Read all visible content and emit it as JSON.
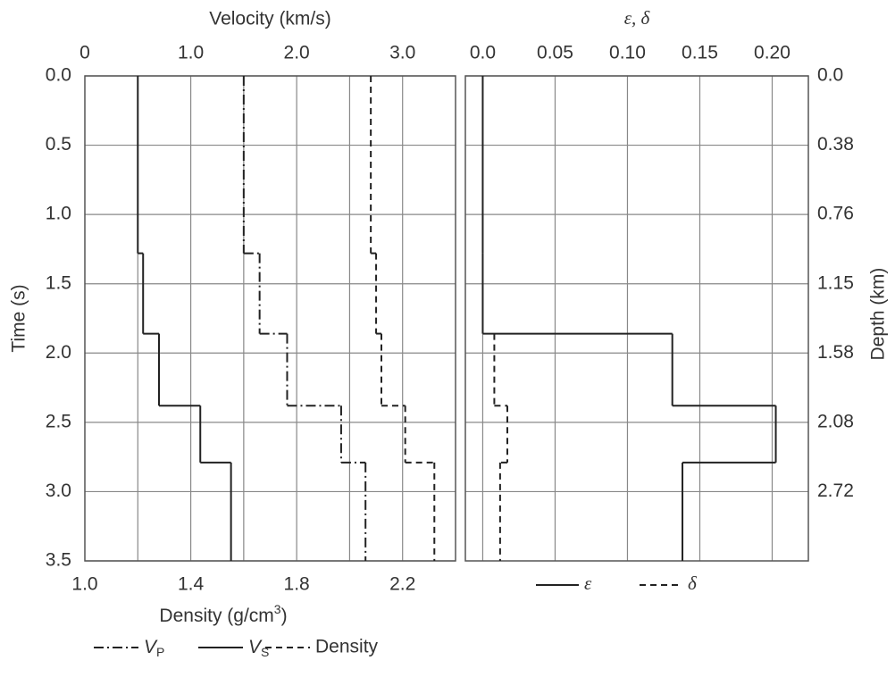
{
  "chart_data": [
    {
      "type": "step",
      "x_label": "Velocity (km/s)",
      "x2_label": "Density (g/cm3)",
      "y_label": "Time (s)",
      "y_breaks": [
        0,
        1.28,
        1.86,
        2.38,
        2.79,
        3.5
      ],
      "xlim": [
        0,
        3.5
      ],
      "xticks": [
        0,
        {
          "value": 1,
          "label": "1.0"
        },
        {
          "value": 2,
          "label": "2.0"
        },
        {
          "value": 3,
          "label": "3.0"
        }
      ],
      "xgrid": [
        0.5,
        1,
        1.5,
        2,
        2.5,
        3
      ],
      "x2lim": [
        1,
        2.4
      ],
      "x2ticks": [
        {
          "value": 1,
          "label": "1.0"
        },
        1.4,
        1.8,
        2.2
      ],
      "ylim": [
        0,
        3.5
      ],
      "y_inverted": true,
      "yticks": [
        {
          "value": 0,
          "label": "0.0"
        },
        0.5,
        {
          "value": 1,
          "label": "1.0"
        },
        1.5,
        {
          "value": 2,
          "label": "2.0"
        },
        2.5,
        {
          "value": 3,
          "label": "3.0"
        },
        3.5
      ],
      "series": [
        {
          "name": "VP",
          "style": "dashdot",
          "color": "#222",
          "values": [
            1.5,
            1.65,
            1.91,
            2.42,
            2.65
          ]
        },
        {
          "name": "VS",
          "style": "solid",
          "color": "#222",
          "values": [
            0.5,
            0.55,
            0.7,
            1.09,
            1.38
          ]
        },
        {
          "name": "Density",
          "style": "dashed",
          "color": "#222",
          "axis": "x2",
          "values": [
            2.08,
            2.1,
            2.12,
            2.21,
            2.32
          ]
        }
      ]
    },
    {
      "type": "step",
      "x_label": "ε, δ",
      "y2_label": "Depth (km)",
      "y_breaks": [
        0,
        1.28,
        1.86,
        2.38,
        2.79,
        3.5
      ],
      "xlim": [
        -0.012,
        0.225
      ],
      "xticks": [
        {
          "value": 0,
          "label": "0.0"
        },
        0.05,
        {
          "value": 0.1,
          "label": "0.10"
        },
        0.15,
        {
          "value": 0.2,
          "label": "0.20"
        }
      ],
      "ylim": [
        0,
        3.5
      ],
      "y_inverted": true,
      "yticks": [
        0,
        0.5,
        1,
        1.5,
        2,
        2.5,
        3
      ],
      "y2ticks": [
        {
          "value": 0,
          "label": "0.0"
        },
        0.38,
        0.76,
        1.15,
        1.58,
        2.08,
        2.72
      ],
      "series": [
        {
          "name": "ε",
          "style": "solid",
          "color": "#222",
          "values": [
            0,
            0,
            0.131,
            0.2025,
            0.138
          ]
        },
        {
          "name": "δ",
          "style": "dashed",
          "color": "#222",
          "values": [
            null,
            null,
            0.008,
            0.017,
            0.012
          ]
        }
      ]
    }
  ]
}
